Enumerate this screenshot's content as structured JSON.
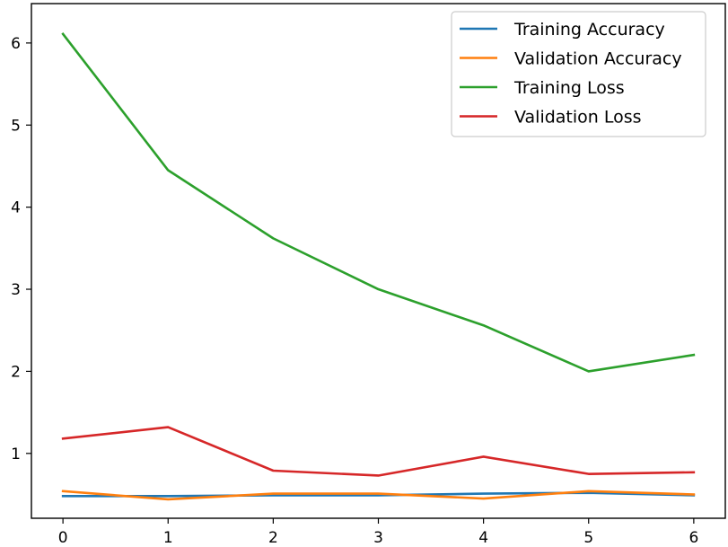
{
  "chart_data": {
    "type": "line",
    "title": "",
    "xlabel": "",
    "ylabel": "",
    "x": [
      0,
      1,
      2,
      3,
      4,
      5,
      6
    ],
    "xlim": [
      -0.3,
      6.3
    ],
    "ylim": [
      0.21,
      6.48
    ],
    "xticks": [
      0,
      1,
      2,
      3,
      4,
      5,
      6
    ],
    "yticks": [
      1,
      2,
      3,
      4,
      5,
      6
    ],
    "grid": false,
    "legend_position": "top-right",
    "series": [
      {
        "name": "Training Accuracy",
        "color": "#1f77b4",
        "values": [
          0.48,
          0.48,
          0.49,
          0.49,
          0.51,
          0.52,
          0.49
        ]
      },
      {
        "name": "Validation Accuracy",
        "color": "#ff7f0e",
        "values": [
          0.54,
          0.44,
          0.51,
          0.51,
          0.45,
          0.54,
          0.5
        ]
      },
      {
        "name": "Training Loss",
        "color": "#2ca02c",
        "values": [
          6.11,
          4.45,
          3.62,
          3.0,
          2.56,
          2.0,
          2.2
        ]
      },
      {
        "name": "Validation Loss",
        "color": "#d62728",
        "values": [
          1.18,
          1.32,
          0.79,
          0.73,
          0.96,
          0.75,
          0.77
        ]
      }
    ]
  }
}
